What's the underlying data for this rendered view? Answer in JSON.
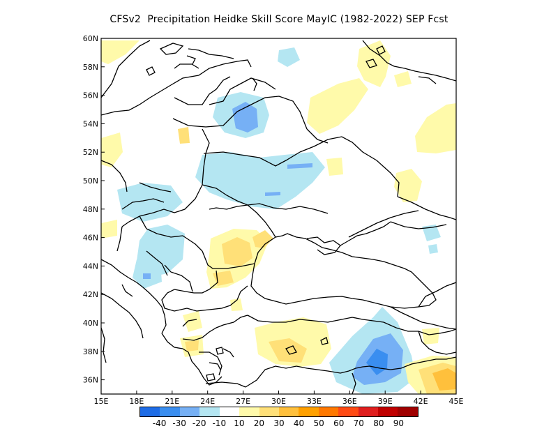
{
  "title": "CFSv2  Precipitation Heidke Skill Score MayIC (1982-2022) SEP Fcst",
  "map": {
    "lon_ticks": [
      "15E",
      "18E",
      "21E",
      "24E",
      "27E",
      "30E",
      "33E",
      "36E",
      "39E",
      "42E",
      "45E"
    ],
    "lat_ticks": [
      "36N",
      "38N",
      "40N",
      "42N",
      "44N",
      "46N",
      "48N",
      "50N",
      "52N",
      "54N",
      "56N",
      "58N",
      "60N"
    ],
    "lon_range": [
      15,
      45
    ],
    "lat_range": [
      35,
      60
    ]
  },
  "colorbar": {
    "colors": [
      "#1e6ce6",
      "#3a8ef0",
      "#76b0f5",
      "#b4e6f2",
      "#ffffff",
      "#fffaaa",
      "#ffe078",
      "#ffc03c",
      "#ffa000",
      "#ff7800",
      "#ff4a14",
      "#e01e1e",
      "#c00000",
      "#a00000"
    ],
    "labels": [
      "-40",
      "-30",
      "-20",
      "-10",
      "10",
      "20",
      "30",
      "40",
      "50",
      "60",
      "70",
      "80",
      "90"
    ]
  }
}
